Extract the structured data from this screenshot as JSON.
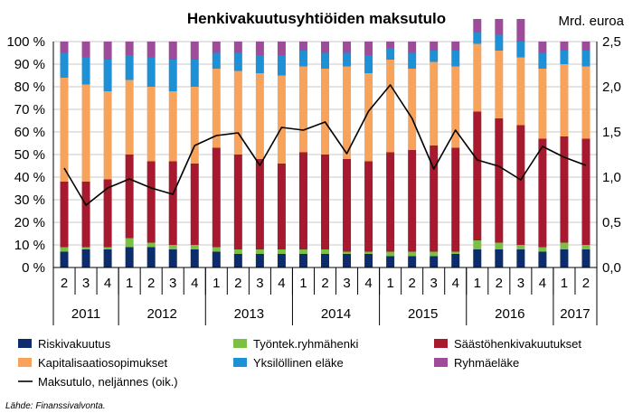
{
  "chart_data": {
    "type": "bar",
    "stacked": true,
    "title": "Henkivakuutusyhtiöiden maksutulo",
    "y2label": "Mrd. euroa",
    "source": "Lähde: Finanssivalvonta.",
    "ylim": [
      0,
      100
    ],
    "ytick_labels": [
      "0 %",
      "10 %",
      "20 %",
      "30 %",
      "40 %",
      "50 %",
      "60 %",
      "70 %",
      "80 %",
      "90 %",
      "100 %"
    ],
    "y2lim": [
      0,
      2.5
    ],
    "y2tick_labels": [
      "0,0",
      "0,5",
      "1,0",
      "1,5",
      "2,0",
      "2,5"
    ],
    "quarters": [
      "2",
      "3",
      "4",
      "1",
      "2",
      "3",
      "4",
      "1",
      "2",
      "3",
      "4",
      "1",
      "2",
      "3",
      "4",
      "1",
      "2",
      "3",
      "4",
      "1",
      "2",
      "3",
      "4",
      "1",
      "2"
    ],
    "years": [
      {
        "label": "2011",
        "count": 3
      },
      {
        "label": "2012",
        "count": 4
      },
      {
        "label": "2013",
        "count": 4
      },
      {
        "label": "2014",
        "count": 4
      },
      {
        "label": "2015",
        "count": 4
      },
      {
        "label": "2016",
        "count": 4
      },
      {
        "label": "2017",
        "count": 2
      }
    ],
    "series": [
      {
        "name": "Riskivakuutus",
        "color": "#0d2c6c",
        "values": [
          7,
          8,
          8,
          9,
          9,
          8,
          8,
          7,
          6,
          6,
          6,
          6,
          6,
          6,
          6,
          5,
          5,
          5,
          6,
          8,
          8,
          8,
          7,
          8,
          8
        ]
      },
      {
        "name": "Työntek.ryhmähenki",
        "color": "#7ac143",
        "values": [
          2,
          1,
          1,
          4,
          2,
          2,
          2,
          2,
          2,
          2,
          2,
          2,
          2,
          1,
          1,
          2,
          2,
          2,
          1,
          4,
          3,
          2,
          2,
          3,
          2
        ]
      },
      {
        "name": "Säästöhenkivakuutukset",
        "color": "#a6192e",
        "values": [
          29,
          29,
          30,
          37,
          36,
          37,
          36,
          44,
          42,
          40,
          38,
          43,
          42,
          41,
          40,
          44,
          45,
          47,
          46,
          57,
          55,
          53,
          48,
          47,
          47
        ]
      },
      {
        "name": "Kapitalisaatiosopimukset",
        "color": "#f7a35c",
        "values": [
          46,
          43,
          39,
          33,
          33,
          31,
          34,
          35,
          37,
          38,
          39,
          38,
          38,
          41,
          39,
          41,
          36,
          37,
          36,
          30,
          30,
          30,
          31,
          32,
          32
        ]
      },
      {
        "name": "Yksilöllinen eläke",
        "color": "#1e90d6",
        "values": [
          11,
          12,
          14,
          11,
          13,
          14,
          12,
          7,
          8,
          8,
          9,
          7,
          7,
          6,
          8,
          5,
          7,
          5,
          7,
          5,
          7,
          7,
          7,
          6,
          7
        ]
      },
      {
        "name": "Ryhmäeläke",
        "color": "#9e4b9a",
        "values": [
          5,
          7,
          8,
          6,
          7,
          8,
          8,
          5,
          5,
          6,
          6,
          4,
          5,
          5,
          6,
          3,
          5,
          4,
          4,
          6,
          7,
          10,
          5,
          4,
          4
        ]
      }
    ],
    "line": {
      "name": "Maksutulo, neljännes (oik.)",
      "color": "#000000",
      "values": [
        1.1,
        0.69,
        0.88,
        0.98,
        0.88,
        0.81,
        1.35,
        1.46,
        1.49,
        1.13,
        1.55,
        1.52,
        1.61,
        1.26,
        1.73,
        2.02,
        1.65,
        1.09,
        1.52,
        1.19,
        1.12,
        0.97,
        1.34,
        1.22,
        1.13
      ]
    },
    "legend_position": "bottom"
  }
}
